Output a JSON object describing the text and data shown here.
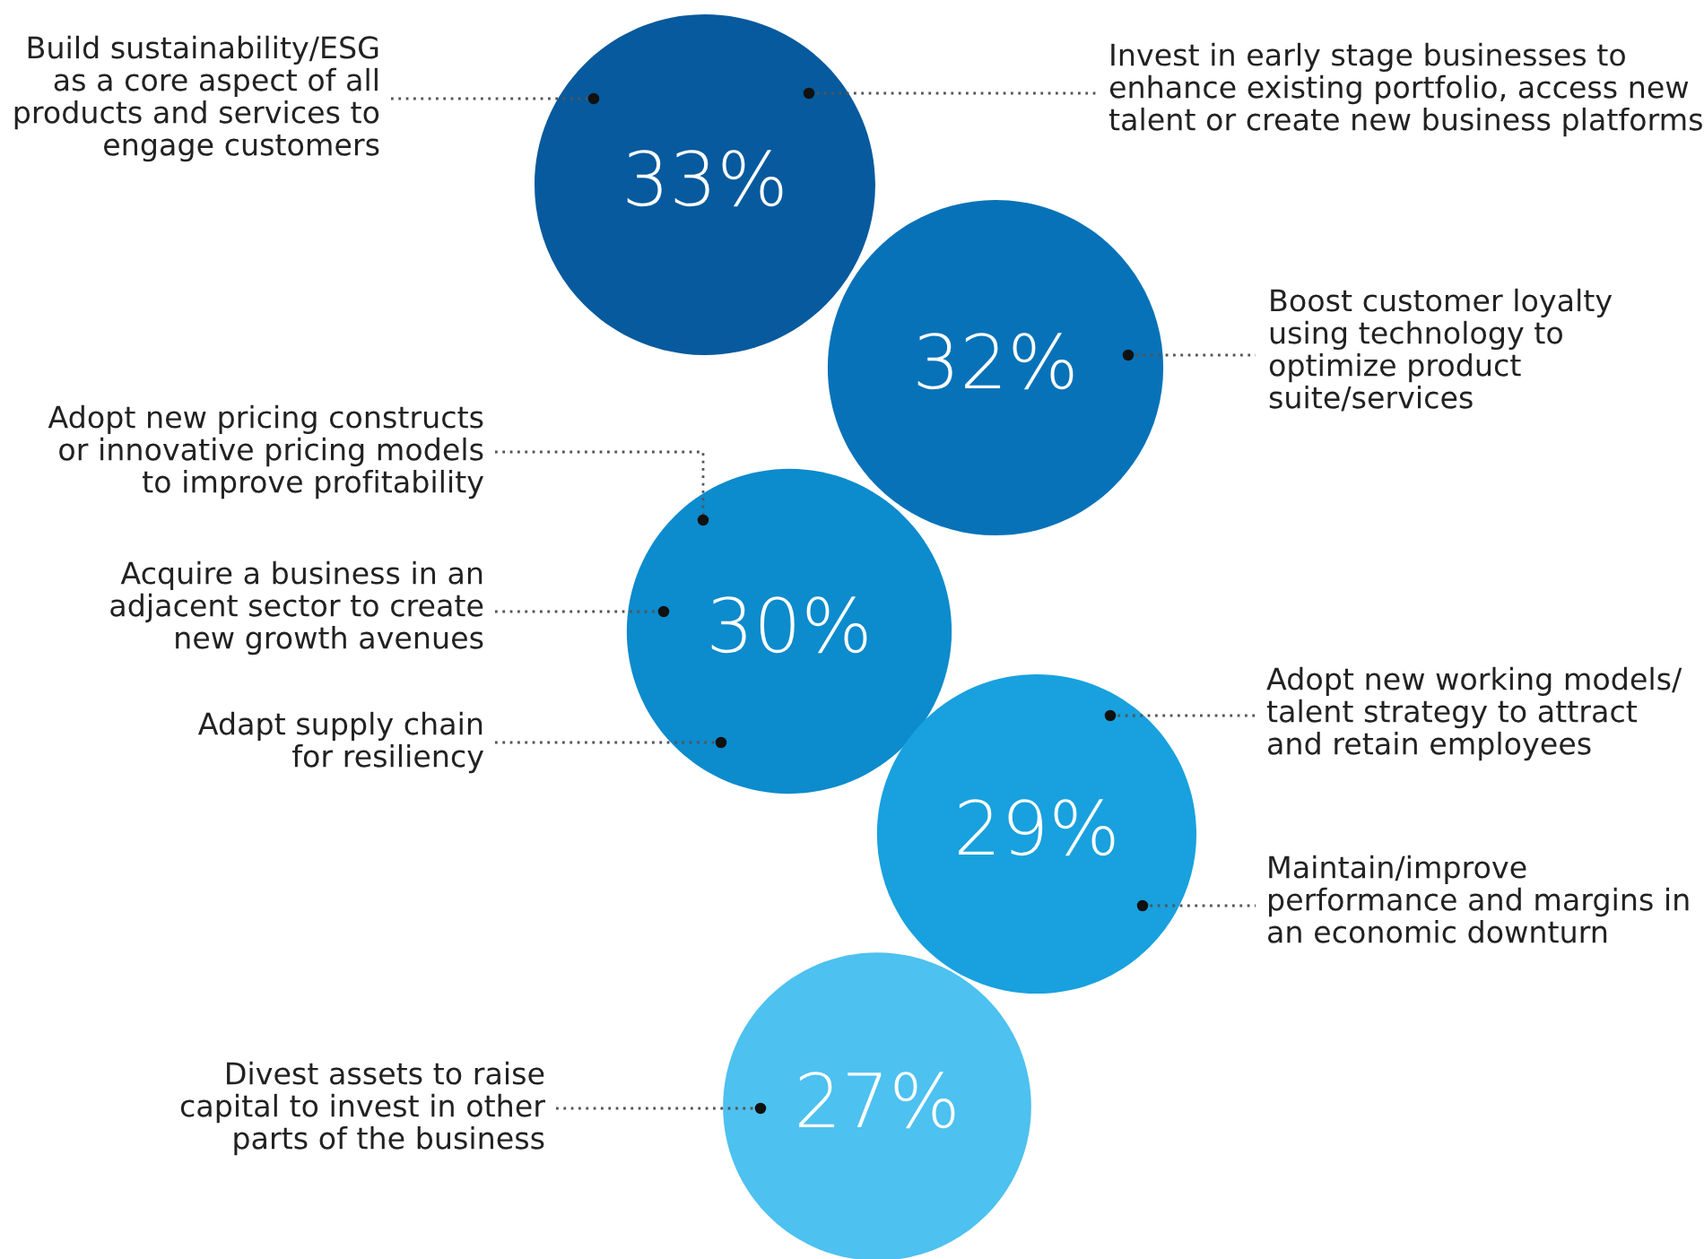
{
  "chart_data": {
    "type": "other",
    "values": [
      33,
      32,
      30,
      29,
      27
    ],
    "value_labels": [
      "33%",
      "32%",
      "30%",
      "29%",
      "27%"
    ],
    "colors": [
      "#075a9d",
      "#0872b8",
      "#0c8bcd",
      "#18a1de",
      "#4dc1ef"
    ],
    "annotations": [
      "Build sustainability/ESG\nas a core aspect of all\nproducts and services to\nengage customers",
      "Invest in early stage businesses to\nenhance existing portfolio, access new\ntalent or create new business platforms",
      "Boost customer loyalty\nusing technology to\noptimize product\nsuite/services",
      "Adopt new pricing constructs\nor innovative pricing models\nto improve profitability",
      "Acquire a business in an\nadjacent sector to create\nnew growth avenues",
      "Adapt supply chain\nfor resiliency",
      "Adopt new working models/\ntalent strategy to attract\nand retain employees",
      "Maintain/improve\nperformance and margins in\nan economic downturn",
      "Divest assets to raise\ncapital to invest in other\nparts of the business"
    ]
  }
}
